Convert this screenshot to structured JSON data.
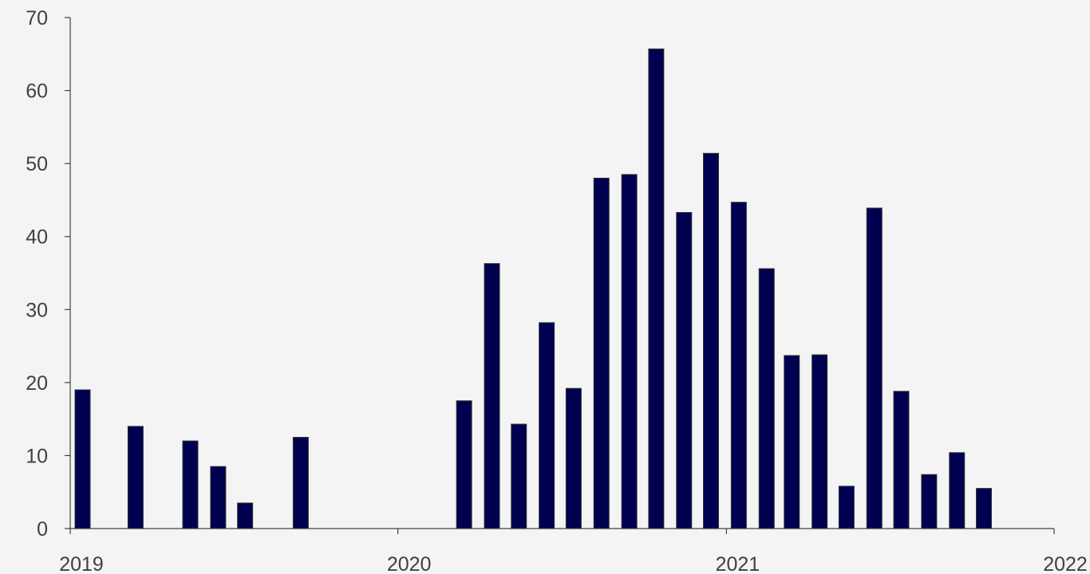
{
  "chart_data": {
    "type": "bar",
    "title": "",
    "xlabel": "",
    "ylabel": "",
    "x_axis": {
      "type": "date",
      "ticks": [
        "2019",
        "2020",
        "2021",
        "2022"
      ]
    },
    "y_axis": {
      "ylim": [
        0,
        70
      ],
      "ticks": [
        "0",
        "10",
        "20",
        "30",
        "40",
        "50",
        "60",
        "70"
      ]
    },
    "grid": false,
    "legend": "none",
    "bar_color": "#000050",
    "axis_color": "#404040",
    "series": [
      {
        "points": [
          {
            "x": "2019-01",
            "y": 19
          },
          {
            "x": "2019-03",
            "y": 14
          },
          {
            "x": "2019-05",
            "y": 12
          },
          {
            "x": "2019-06",
            "y": 8.5
          },
          {
            "x": "2019-07",
            "y": 3.5
          },
          {
            "x": "2019-09",
            "y": 12.5
          },
          {
            "x": "2020-03",
            "y": 17.5
          },
          {
            "x": "2020-04",
            "y": 36.3
          },
          {
            "x": "2020-05",
            "y": 14.3
          },
          {
            "x": "2020-06",
            "y": 28.2
          },
          {
            "x": "2020-07",
            "y": 19.2
          },
          {
            "x": "2020-08",
            "y": 48
          },
          {
            "x": "2020-09",
            "y": 48.5
          },
          {
            "x": "2020-10",
            "y": 65.7
          },
          {
            "x": "2020-11",
            "y": 43.3
          },
          {
            "x": "2020-12",
            "y": 51.4
          },
          {
            "x": "2021-01",
            "y": 44.7
          },
          {
            "x": "2021-02",
            "y": 35.6
          },
          {
            "x": "2021-03",
            "y": 23.7
          },
          {
            "x": "2021-04",
            "y": 23.8
          },
          {
            "x": "2021-05",
            "y": 5.8
          },
          {
            "x": "2021-06",
            "y": 43.9
          },
          {
            "x": "2021-07",
            "y": 18.8
          },
          {
            "x": "2021-08",
            "y": 7.4
          },
          {
            "x": "2021-09",
            "y": 10.4
          },
          {
            "x": "2021-10",
            "y": 5.5
          }
        ]
      }
    ]
  }
}
